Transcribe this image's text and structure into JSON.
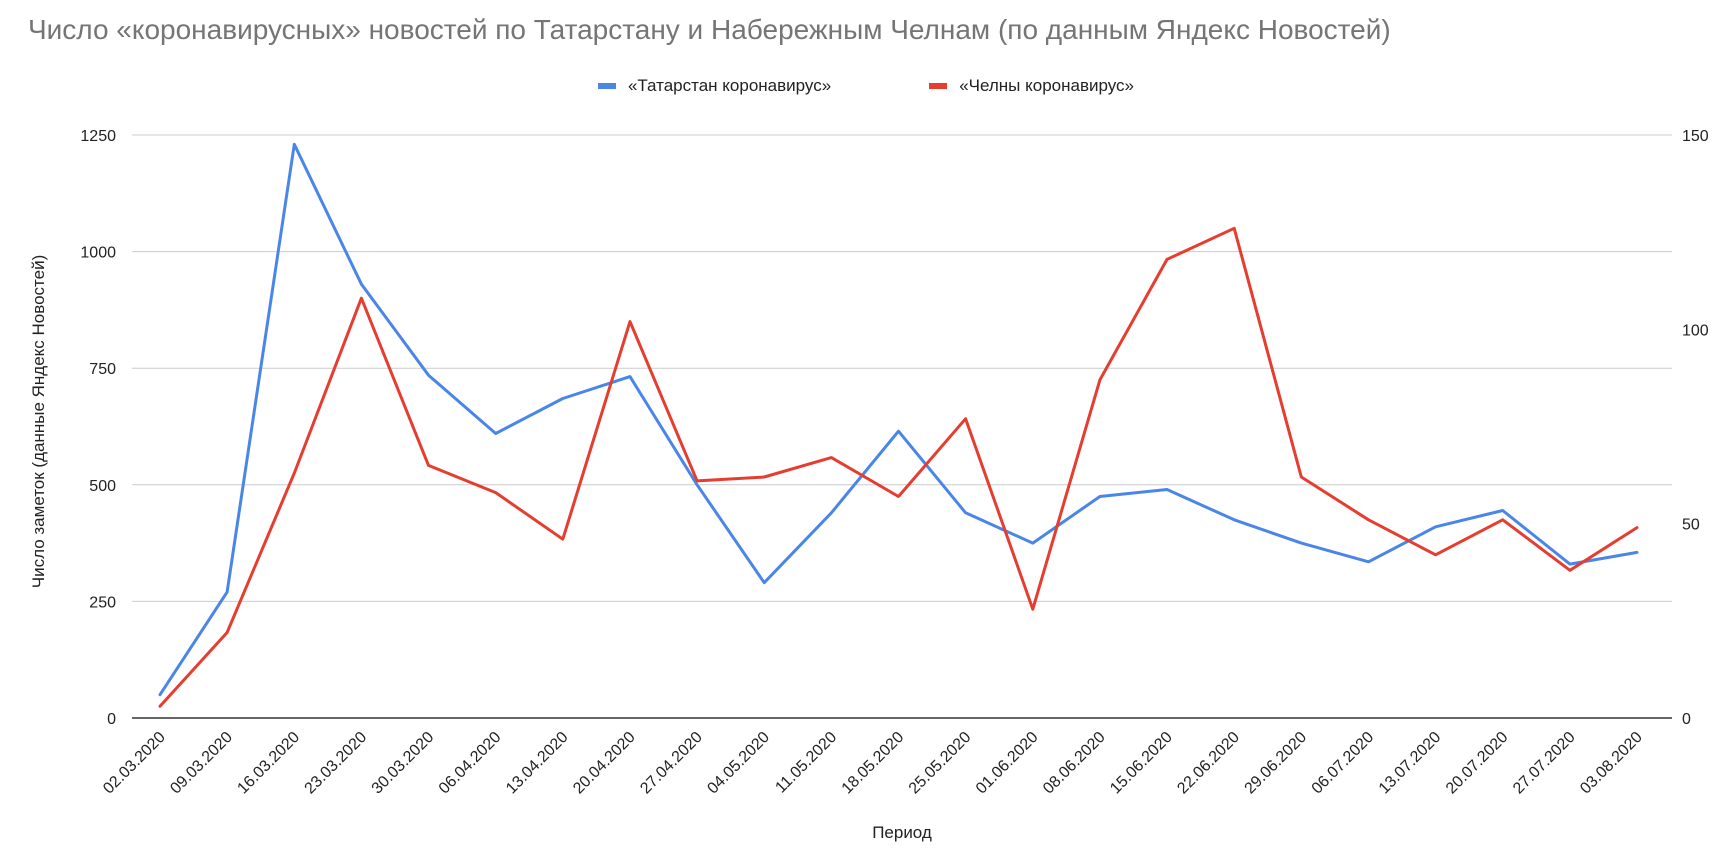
{
  "chart_data": {
    "type": "line",
    "title": "Число «коронавирусных» новостей по Татарстану и Набережным Челнам (по данным Яндекс Новостей)",
    "xlabel": "Период",
    "ylabel": "Число заметок (данные Яндекс Новостей)",
    "ylim_left": [
      0,
      1250
    ],
    "ylim_right": [
      0,
      150
    ],
    "yticks_left": [
      "0",
      "250",
      "500",
      "750",
      "1000",
      "1250"
    ],
    "yticks_right": [
      "0",
      "50",
      "100",
      "150"
    ],
    "grid": true,
    "legend_position": "top",
    "categories": [
      "02.03.2020",
      "09.03.2020",
      "16.03.2020",
      "23.03.2020",
      "30.03.2020",
      "06.04.2020",
      "13.04.2020",
      "20.04.2020",
      "27.04.2020",
      "04.05.2020",
      "11.05.2020",
      "18.05.2020",
      "25.05.2020",
      "01.06.2020",
      "08.06.2020",
      "15.06.2020",
      "22.06.2020",
      "29.06.2020",
      "06.07.2020",
      "13.07.2020",
      "20.07.2020",
      "27.07.2020",
      "03.08.2020"
    ],
    "series": [
      {
        "name": "«Татарстан коронавирус»",
        "axis": "left",
        "color": "#4a86e8",
        "values": [
          50,
          270,
          1230,
          930,
          735,
          610,
          685,
          732,
          500,
          290,
          440,
          615,
          440,
          375,
          475,
          490,
          425,
          375,
          335,
          410,
          445,
          330,
          355
        ]
      },
      {
        "name": "«Челны коронавирус»",
        "axis": "right",
        "color": "#e53e30",
        "values": [
          3,
          22,
          63,
          108,
          65,
          58,
          46,
          102,
          61,
          62,
          67,
          57,
          77,
          28,
          87,
          118,
          126,
          62,
          51,
          42,
          51,
          38,
          49
        ]
      }
    ]
  }
}
